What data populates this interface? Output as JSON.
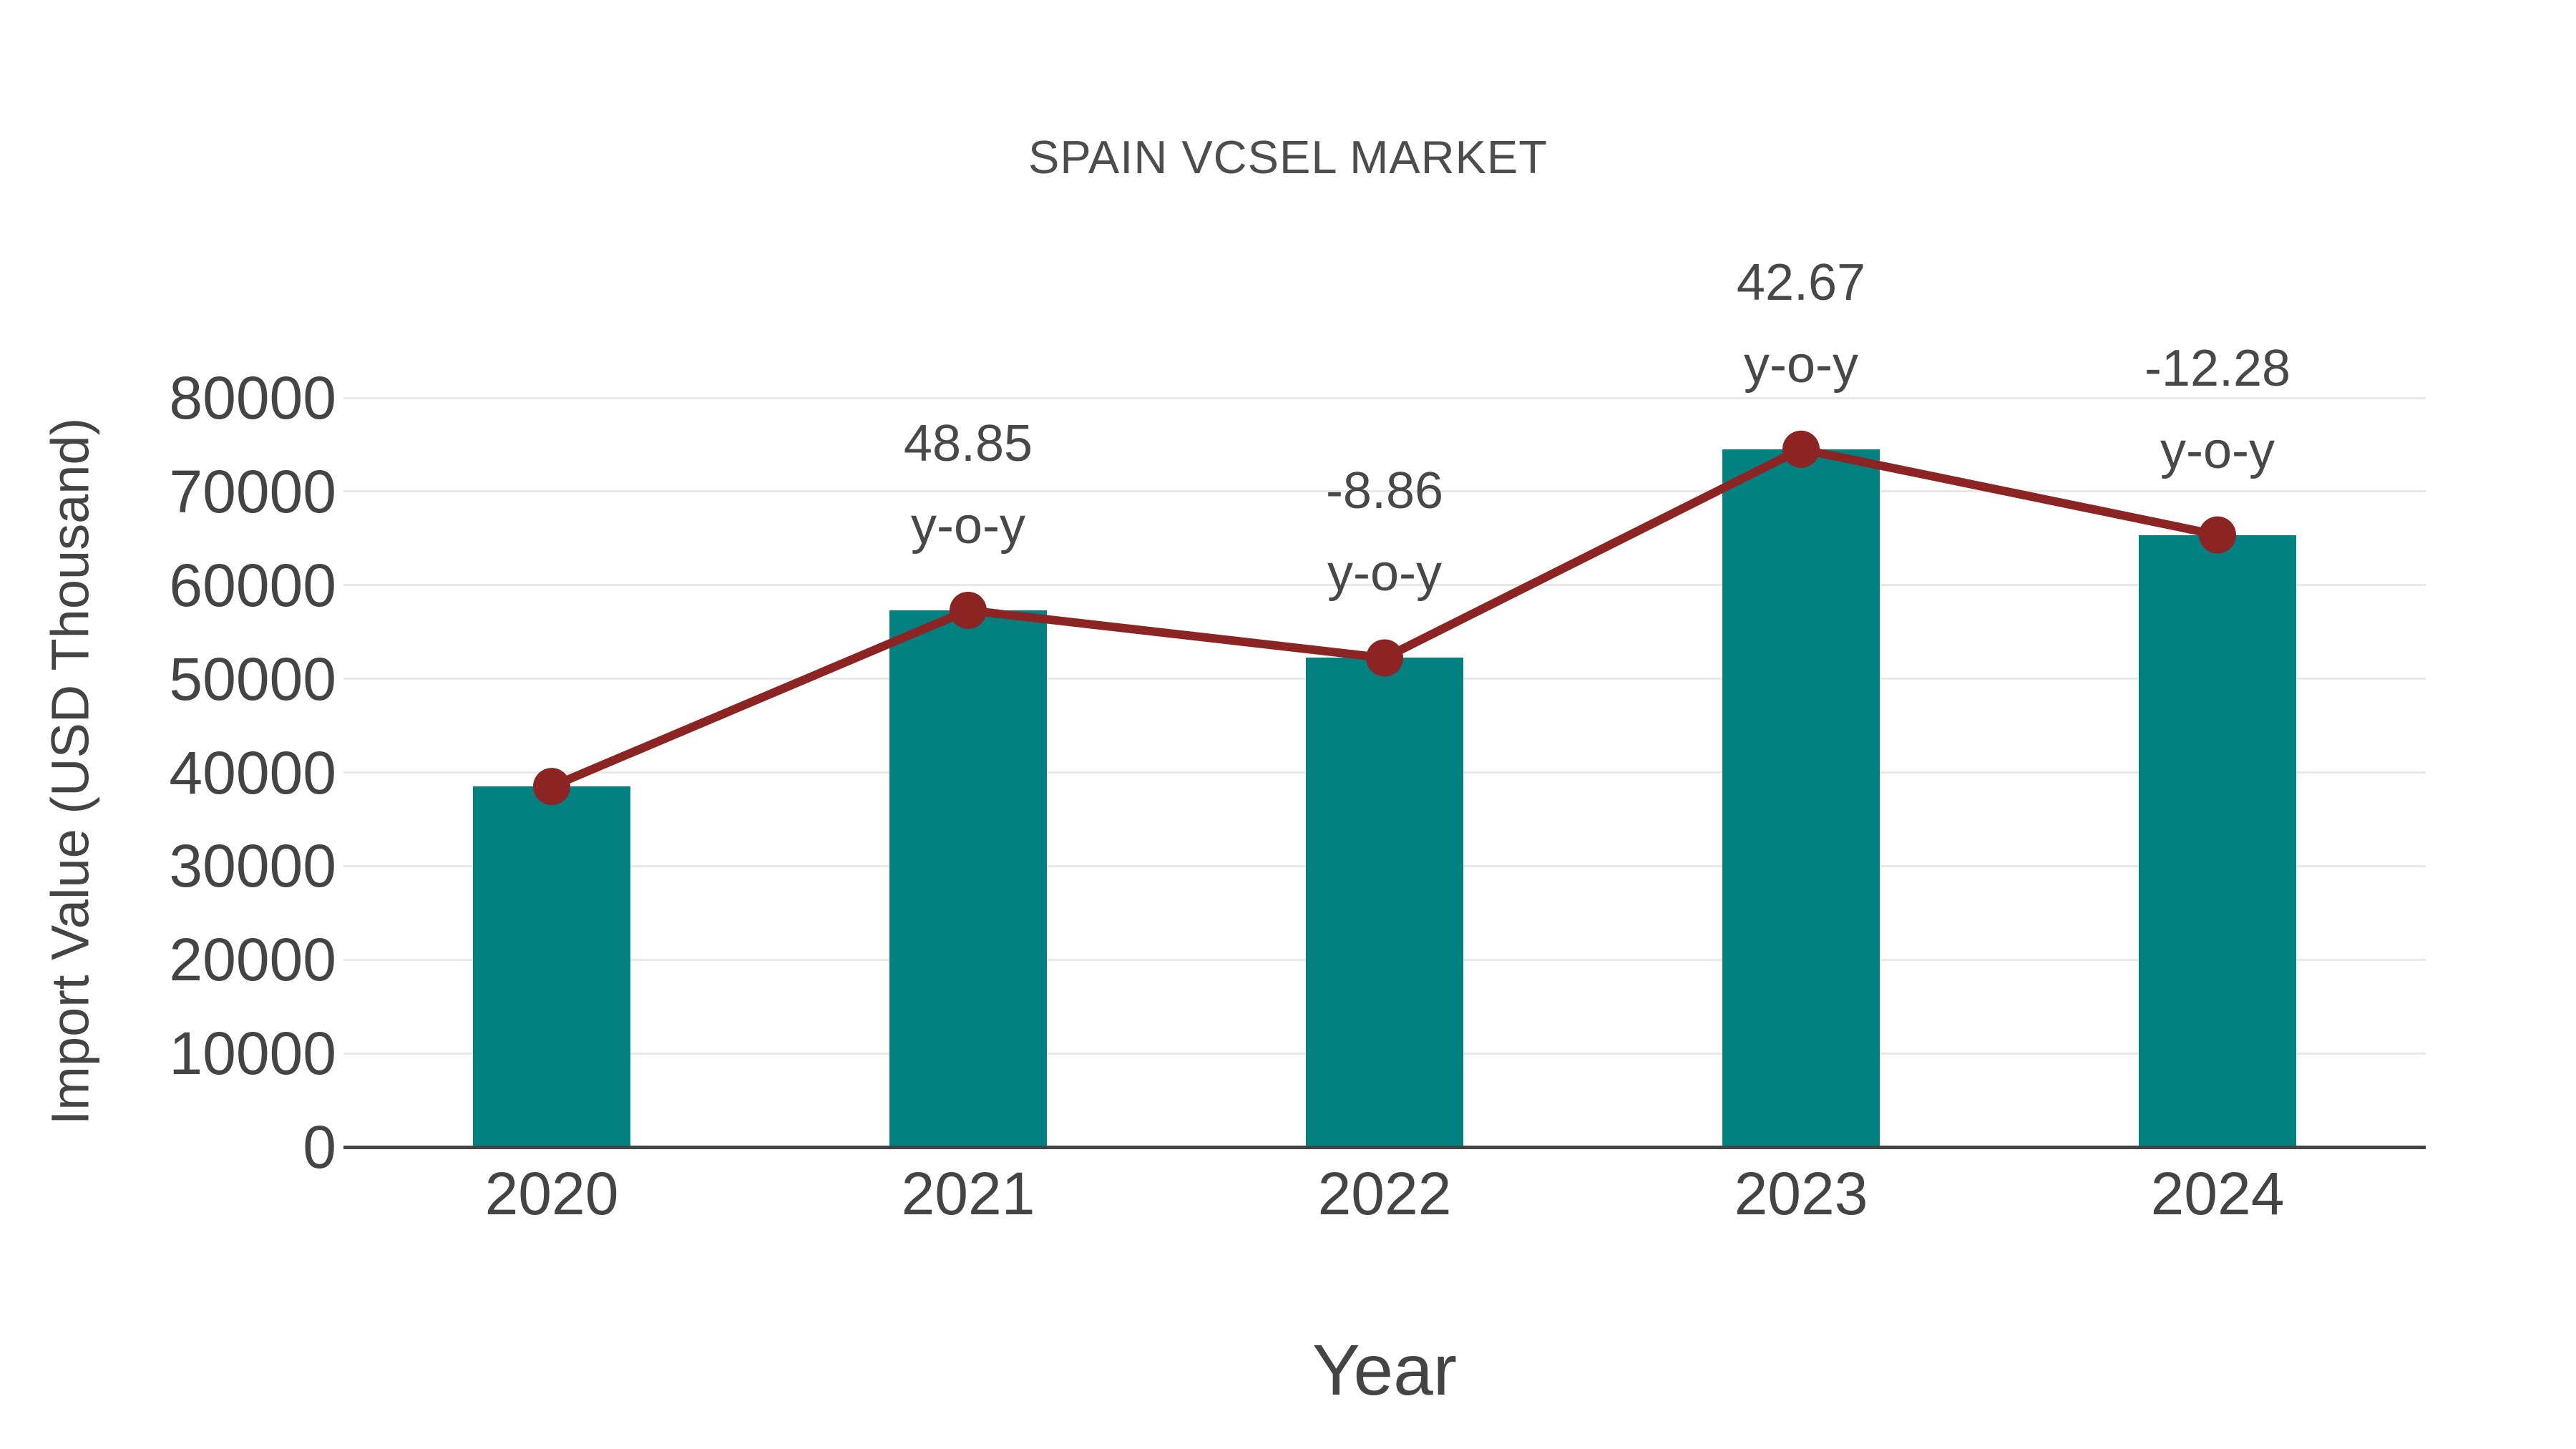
{
  "page": {
    "background": "#ffffff"
  },
  "chart_data": {
    "type": "bar",
    "title": "SPAIN VCSEL MARKET",
    "xlabel": "Year",
    "ylabel": "Import Value (USD Thousand)",
    "categories": [
      "2020",
      "2021",
      "2022",
      "2023",
      "2024"
    ],
    "series": [
      {
        "name": "Import Value (USD Thousand)",
        "type": "bar",
        "color": "#038181",
        "values": [
          38500,
          57310,
          52230,
          74520,
          65360
        ]
      },
      {
        "name": "y-o-y growth",
        "type": "line",
        "color": "#8b2422",
        "values": [
          38500,
          57310,
          52230,
          74520,
          65360
        ],
        "point_labels": [
          null,
          "48.85",
          "-8.86",
          "42.67",
          "-12.28"
        ],
        "label_suffix": "y-o-y"
      }
    ],
    "ylim": [
      0,
      80000
    ],
    "ytick_step": 10000,
    "ytick_labels": [
      "0",
      "10000",
      "20000",
      "30000",
      "40000",
      "50000",
      "60000",
      "70000",
      "80000"
    ],
    "grid": "horizontal",
    "legend_position": "none"
  },
  "colors": {
    "bar": "#038181",
    "line": "#8b2422",
    "text": "#444444",
    "gridline": "#e8e8e8",
    "axis_line": "#444444",
    "background": "#ffffff"
  }
}
